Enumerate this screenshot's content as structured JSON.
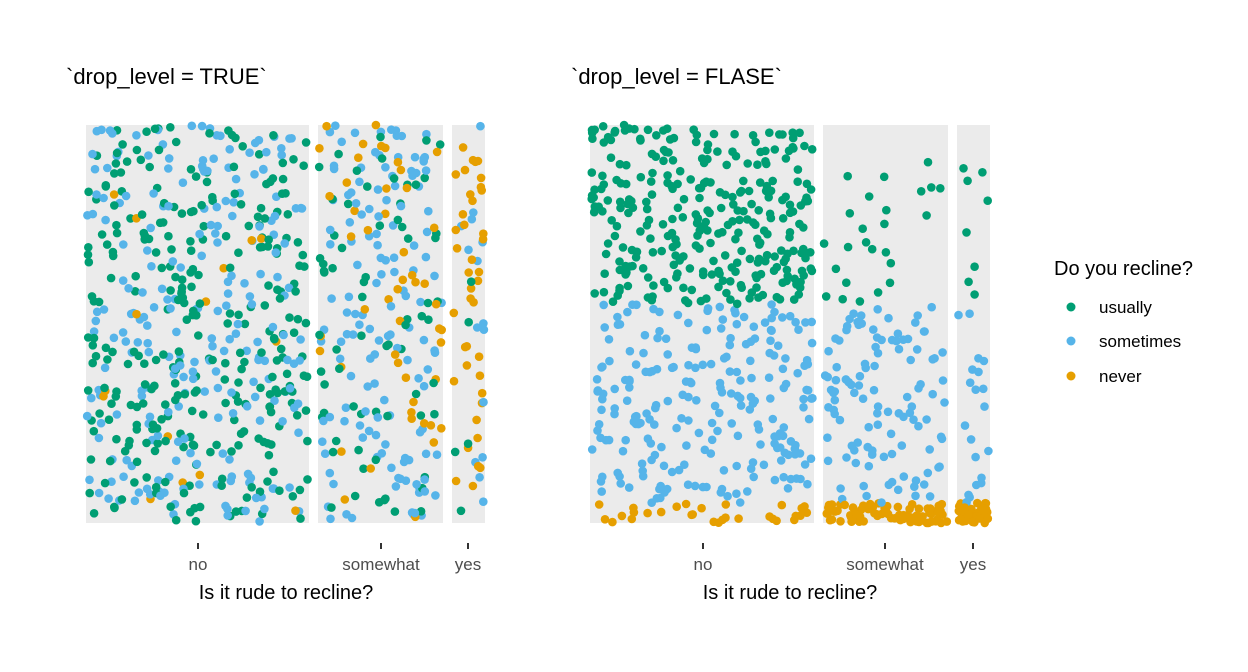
{
  "chart_data": [
    {
      "type": "scatter",
      "subtype": "jittered-strip (stacked by proportion)",
      "title": "`drop_level = TRUE`",
      "xlabel": "Is it rude to recline?",
      "ylabel": "",
      "categories": [
        "no",
        "somewhat",
        "yes"
      ],
      "category_widths": [
        0.56,
        0.31,
        0.08
      ],
      "panel_background": "#ebebeb",
      "grid": false,
      "series": [
        {
          "name": "usually",
          "color": "#009E73",
          "counts": [
            300,
            70,
            5
          ],
          "layout": "mixed"
        },
        {
          "name": "sometimes",
          "color": "#56B4E9",
          "counts": [
            230,
            140,
            15
          ],
          "layout": "mixed"
        },
        {
          "name": "never",
          "color": "#E69F00",
          "counts": [
            15,
            50,
            40
          ],
          "layout": "mixed"
        }
      ]
    },
    {
      "type": "scatter",
      "subtype": "jittered-strip (stacked by proportion)",
      "title": "`drop_level = FLASE`",
      "xlabel": "Is it rude to recline?",
      "ylabel": "",
      "categories": [
        "no",
        "somewhat",
        "yes"
      ],
      "category_widths": [
        0.56,
        0.31,
        0.08
      ],
      "panel_background": "#ebebeb",
      "grid": false,
      "series": [
        {
          "name": "usually",
          "color": "#009E73",
          "counts": [
            300,
            25,
            8
          ],
          "layout": "stacked",
          "y_range": [
            0.55,
            1.0
          ]
        },
        {
          "name": "sometimes",
          "color": "#56B4E9",
          "counts": [
            230,
            110,
            20
          ],
          "layout": "stacked",
          "y_range": [
            0.05,
            0.55
          ]
        },
        {
          "name": "never",
          "color": "#E69F00",
          "counts": [
            30,
            80,
            45
          ],
          "layout": "stacked",
          "y_range": [
            0.0,
            0.05
          ]
        }
      ]
    }
  ],
  "legend": {
    "title": "Do you recline?",
    "position": "right",
    "items": [
      {
        "label": "usually",
        "color": "#009E73"
      },
      {
        "label": "sometimes",
        "color": "#56B4E9"
      },
      {
        "label": "never",
        "color": "#E69F00"
      }
    ]
  }
}
